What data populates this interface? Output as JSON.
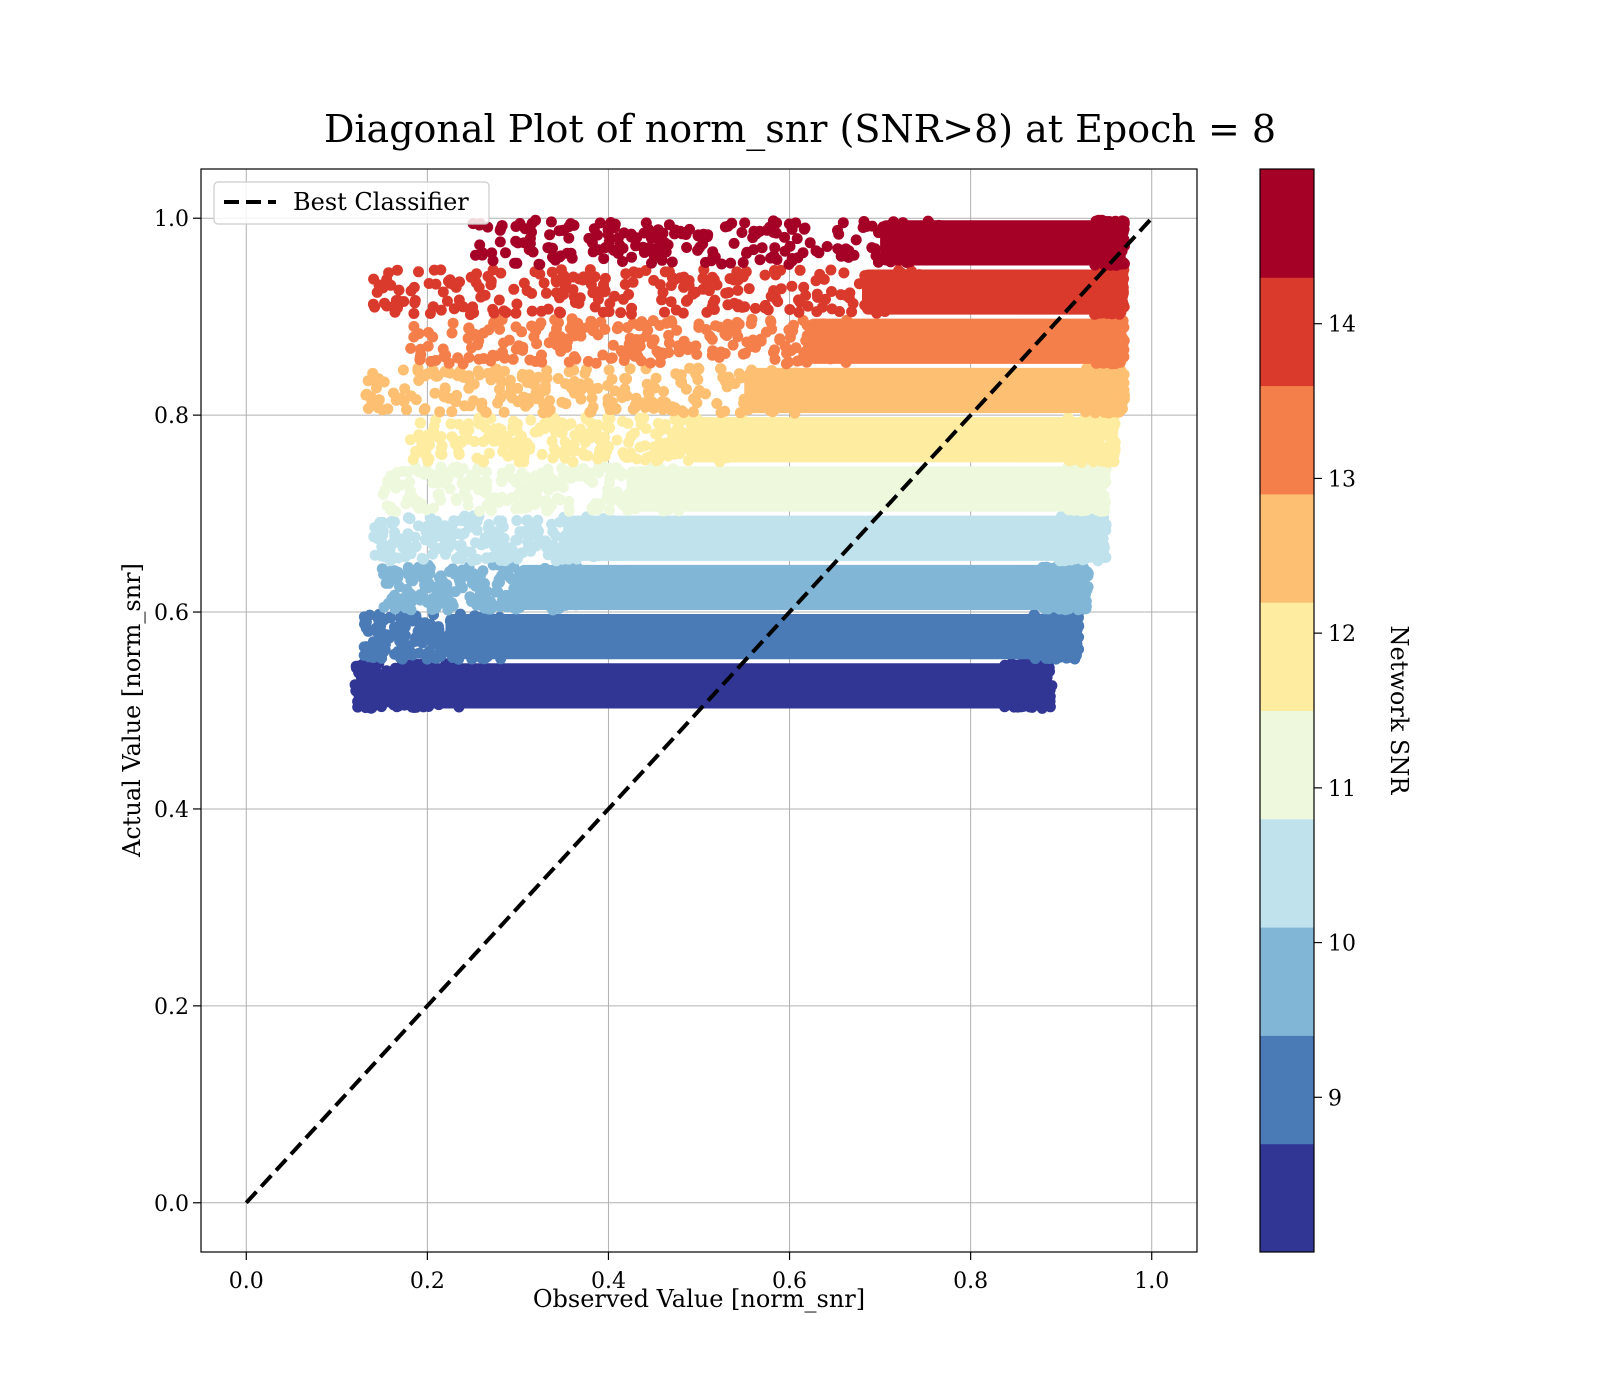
{
  "chart_data": {
    "type": "scatter",
    "title": "Diagonal Plot of norm_snr (SNR>8) at Epoch = 8",
    "xlabel": "Observed Value [norm_snr]",
    "ylabel": "Actual Value [norm_snr]",
    "xlim": [
      -0.05,
      1.05
    ],
    "ylim": [
      -0.05,
      1.05
    ],
    "xticks": [
      "0.0",
      "0.2",
      "0.4",
      "0.6",
      "0.8",
      "1.0"
    ],
    "yticks": [
      "0.0",
      "0.2",
      "0.4",
      "0.6",
      "0.8",
      "1.0"
    ],
    "grid": true,
    "legend": {
      "position": "top-left",
      "entries": [
        "Best Classifier"
      ]
    },
    "reference_line": {
      "name": "Best Classifier",
      "style": "dashed",
      "color": "#000000",
      "x": [
        0.0,
        1.0
      ],
      "y": [
        0.0,
        1.0
      ]
    },
    "colorbar": {
      "label": "Network SNR",
      "range": [
        8.0,
        15.0
      ],
      "tick_values": [
        9,
        10,
        11,
        12,
        13,
        14
      ],
      "tick_labels": [
        "9",
        "10",
        "11",
        "12",
        "13",
        "14"
      ],
      "bins": [
        {
          "snr": [
            8.0,
            8.7
          ],
          "color": "#313695"
        },
        {
          "snr": [
            8.7,
            9.4
          ],
          "color": "#4a7bb7"
        },
        {
          "snr": [
            9.4,
            10.1
          ],
          "color": "#82b6d6"
        },
        {
          "snr": [
            10.1,
            10.8
          ],
          "color": "#bfe2ec"
        },
        {
          "snr": [
            10.8,
            11.5
          ],
          "color": "#eef8dd"
        },
        {
          "snr": [
            11.5,
            12.2
          ],
          "color": "#feeca0"
        },
        {
          "snr": [
            12.2,
            12.9
          ],
          "color": "#fdbf71"
        },
        {
          "snr": [
            12.9,
            13.6
          ],
          "color": "#f57f4b"
        },
        {
          "snr": [
            13.6,
            14.3
          ],
          "color": "#da3a2c"
        },
        {
          "snr": [
            14.3,
            15.0
          ],
          "color": "#a50026"
        }
      ]
    },
    "bands": [
      {
        "y": [
          0.5,
          0.55
        ],
        "x_dense": [
          0.17,
          0.87
        ],
        "x_range": [
          0.12,
          0.89
        ],
        "color": "#313695"
      },
      {
        "y": [
          0.55,
          0.6
        ],
        "x_dense": [
          0.22,
          0.9
        ],
        "x_range": [
          0.13,
          0.92
        ],
        "color": "#4a7bb7"
      },
      {
        "y": [
          0.6,
          0.65
        ],
        "x_dense": [
          0.3,
          0.91
        ],
        "x_range": [
          0.14,
          0.93
        ],
        "color": "#82b6d6"
      },
      {
        "y": [
          0.65,
          0.7
        ],
        "x_dense": [
          0.35,
          0.93
        ],
        "x_range": [
          0.14,
          0.95
        ],
        "color": "#bfe2ec"
      },
      {
        "y": [
          0.7,
          0.75
        ],
        "x_dense": [
          0.42,
          0.94
        ],
        "x_range": [
          0.15,
          0.95
        ],
        "color": "#eef8dd"
      },
      {
        "y": [
          0.75,
          0.8
        ],
        "x_dense": [
          0.49,
          0.94
        ],
        "x_range": [
          0.18,
          0.96
        ],
        "color": "#feeca0"
      },
      {
        "y": [
          0.8,
          0.85
        ],
        "x_dense": [
          0.55,
          0.96
        ],
        "x_range": [
          0.13,
          0.97
        ],
        "color": "#fdbf71"
      },
      {
        "y": [
          0.85,
          0.9
        ],
        "x_dense": [
          0.62,
          0.97
        ],
        "x_range": [
          0.18,
          0.97
        ],
        "color": "#f57f4b"
      },
      {
        "y": [
          0.9,
          0.95
        ],
        "x_dense": [
          0.68,
          0.97
        ],
        "x_range": [
          0.14,
          0.97
        ],
        "color": "#da3a2c"
      },
      {
        "y": [
          0.95,
          1.0
        ],
        "x_dense": [
          0.7,
          0.97
        ],
        "x_range": [
          0.25,
          0.97
        ],
        "color": "#a50026"
      }
    ]
  }
}
